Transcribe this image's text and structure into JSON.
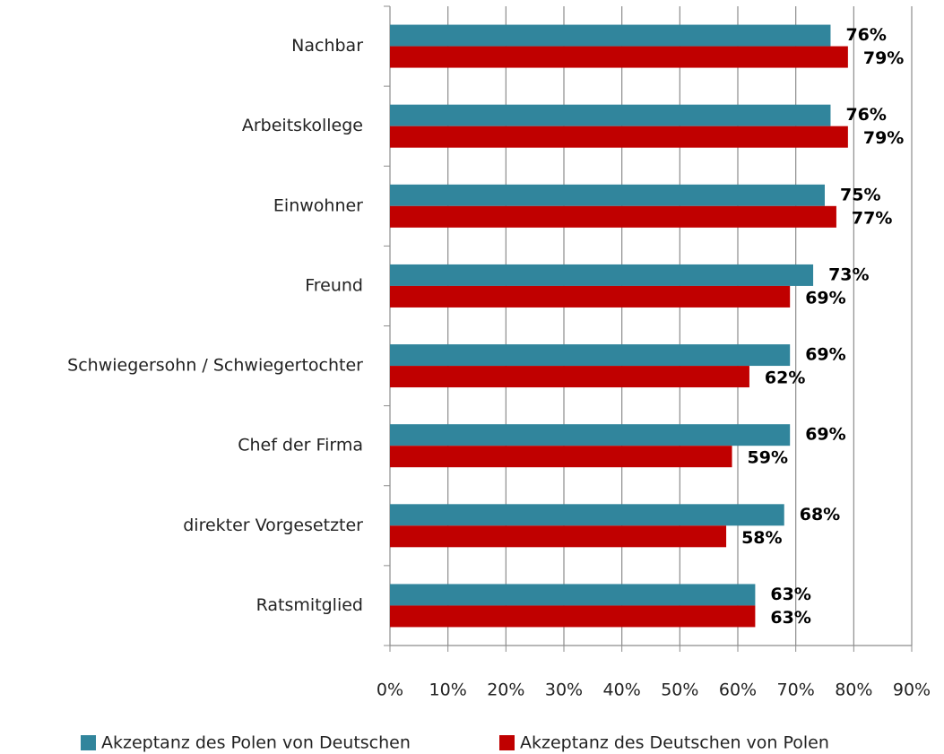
{
  "chart_data": {
    "type": "hbar",
    "categories": [
      "Nachbar",
      "Arbeitskollege",
      "Einwohner",
      "Freund",
      "Schwiegersohn / Schwiegertochter",
      "Chef der Firma",
      "direkter Vorgesetzter",
      "Ratsmitglied"
    ],
    "series": [
      {
        "name": "Akzeptanz des Polen von Deutschen",
        "color": "#31859c",
        "values": [
          76,
          76,
          75,
          73,
          69,
          69,
          68,
          63
        ],
        "value_labels": [
          "76%",
          "76%",
          "75%",
          "73%",
          "69%",
          "69%",
          "68%",
          "63%"
        ]
      },
      {
        "name": "Akzeptanz des Deutschen von Polen",
        "color": "#c00000",
        "values": [
          79,
          79,
          77,
          69,
          62,
          59,
          58,
          63
        ],
        "value_labels": [
          "79%",
          "79%",
          "77%",
          "69%",
          "62%",
          "59%",
          "58%",
          "63%"
        ]
      }
    ],
    "xlim": [
      0,
      90
    ],
    "xticks": [
      {
        "value": 0,
        "label": "0%"
      },
      {
        "value": 10,
        "label": "10%"
      },
      {
        "value": 20,
        "label": "20%"
      },
      {
        "value": 30,
        "label": "30%"
      },
      {
        "value": 40,
        "label": "40%"
      },
      {
        "value": 50,
        "label": "50%"
      },
      {
        "value": 60,
        "label": "60%"
      },
      {
        "value": 70,
        "label": "70%"
      },
      {
        "value": 80,
        "label": "80%"
      },
      {
        "value": 90,
        "label": "90%"
      }
    ],
    "grid": true,
    "legend": "bottom"
  }
}
